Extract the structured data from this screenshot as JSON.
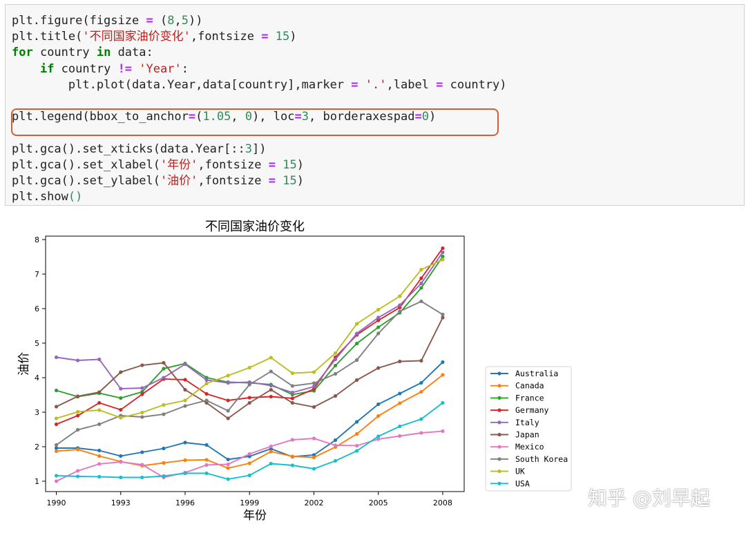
{
  "code_cell": {
    "lines": [
      [
        {
          "t": "plt.figure(figsize "
        },
        {
          "t": "=",
          "c": "op"
        },
        {
          "t": " ("
        },
        {
          "t": "8",
          "c": "num"
        },
        {
          "t": ","
        },
        {
          "t": "5",
          "c": "num"
        },
        {
          "t": "))"
        }
      ],
      [
        {
          "t": "plt.title("
        },
        {
          "t": "'不同国家油价变化'",
          "c": "str"
        },
        {
          "t": ",fontsize "
        },
        {
          "t": "=",
          "c": "op"
        },
        {
          "t": " "
        },
        {
          "t": "15",
          "c": "num"
        },
        {
          "t": ")"
        }
      ],
      [
        {
          "t": "for",
          "c": "kw"
        },
        {
          "t": " country "
        },
        {
          "t": "in",
          "c": "kw"
        },
        {
          "t": " data:"
        }
      ],
      [
        {
          "t": "    "
        },
        {
          "t": "if",
          "c": "kw"
        },
        {
          "t": " country "
        },
        {
          "t": "!=",
          "c": "op"
        },
        {
          "t": " "
        },
        {
          "t": "'Year'",
          "c": "str"
        },
        {
          "t": ":"
        }
      ],
      [
        {
          "t": "        plt.plot(data.Year,data[country],marker "
        },
        {
          "t": "=",
          "c": "op"
        },
        {
          "t": " "
        },
        {
          "t": "'.'",
          "c": "str"
        },
        {
          "t": ",label "
        },
        {
          "t": "=",
          "c": "op"
        },
        {
          "t": " country)"
        }
      ],
      [
        {
          "t": ""
        }
      ],
      [
        {
          "t": "plt.legend(bbox_to_anchor"
        },
        {
          "t": "=",
          "c": "op"
        },
        {
          "t": "("
        },
        {
          "t": "1.05",
          "c": "num"
        },
        {
          "t": ", "
        },
        {
          "t": "0",
          "c": "num"
        },
        {
          "t": "), loc"
        },
        {
          "t": "=",
          "c": "op"
        },
        {
          "t": "3",
          "c": "num"
        },
        {
          "t": ", borderaxespad"
        },
        {
          "t": "=",
          "c": "op"
        },
        {
          "t": "0",
          "c": "num"
        },
        {
          "t": ")"
        }
      ],
      [
        {
          "t": ""
        }
      ],
      [
        {
          "t": "plt.gca().set_xticks(data.Year[::"
        },
        {
          "t": "3",
          "c": "num"
        },
        {
          "t": "])"
        }
      ],
      [
        {
          "t": "plt.gca().set_xlabel("
        },
        {
          "t": "'年份'",
          "c": "str"
        },
        {
          "t": ",fontsize "
        },
        {
          "t": "=",
          "c": "op"
        },
        {
          "t": " "
        },
        {
          "t": "15",
          "c": "num"
        },
        {
          "t": ")"
        }
      ],
      [
        {
          "t": "plt.gca().set_ylabel("
        },
        {
          "t": "'油价'",
          "c": "str"
        },
        {
          "t": ",fontsize "
        },
        {
          "t": "=",
          "c": "op"
        },
        {
          "t": " "
        },
        {
          "t": "15",
          "c": "num"
        },
        {
          "t": ")"
        }
      ],
      [
        {
          "t": "plt.show"
        },
        {
          "t": "()",
          "c": "num"
        }
      ]
    ]
  },
  "watermark": "知乎 @刘早起",
  "chart_data": {
    "type": "line",
    "title": "不同国家油价变化",
    "xlabel": "年份",
    "ylabel": "油价",
    "x": [
      1990,
      1991,
      1992,
      1993,
      1994,
      1995,
      1996,
      1997,
      1998,
      1999,
      2000,
      2001,
      2002,
      2003,
      2004,
      2005,
      2006,
      2007,
      2008
    ],
    "xticks": [
      1990,
      1993,
      1996,
      1999,
      2002,
      2005,
      2008
    ],
    "yticks": [
      1,
      2,
      3,
      4,
      5,
      6,
      7,
      8
    ],
    "xlim": [
      1989.5,
      2009
    ],
    "ylim": [
      0.7,
      8.1
    ],
    "grid": false,
    "legend_position": "outside-right-bottom",
    "series": [
      {
        "name": "Australia",
        "color": "#1f77b4",
        "values": [
          1.96,
          1.96,
          1.89,
          1.73,
          1.84,
          1.95,
          2.12,
          2.05,
          1.63,
          1.72,
          1.94,
          1.71,
          1.76,
          2.19,
          2.72,
          3.23,
          3.54,
          3.85,
          4.45
        ]
      },
      {
        "name": "Canada",
        "color": "#ff7f0e",
        "values": [
          1.87,
          1.92,
          1.73,
          1.57,
          1.45,
          1.53,
          1.61,
          1.62,
          1.38,
          1.52,
          1.86,
          1.72,
          1.69,
          1.99,
          2.37,
          2.89,
          3.26,
          3.59,
          4.08
        ]
      },
      {
        "name": "France",
        "color": "#2ca02c",
        "values": [
          3.63,
          3.45,
          3.55,
          3.41,
          3.59,
          4.26,
          4.41,
          4.0,
          3.87,
          3.85,
          3.8,
          3.51,
          3.62,
          4.35,
          4.99,
          5.46,
          5.88,
          6.6,
          7.51
        ]
      },
      {
        "name": "Germany",
        "color": "#d62728",
        "values": [
          2.65,
          2.9,
          3.27,
          3.07,
          3.52,
          3.96,
          3.94,
          3.53,
          3.34,
          3.42,
          3.45,
          3.4,
          3.67,
          4.59,
          5.24,
          5.66,
          6.03,
          6.88,
          7.75
        ]
      },
      {
        "name": "Italy",
        "color": "#9467bd",
        "values": [
          4.59,
          4.5,
          4.53,
          3.68,
          3.7,
          4.0,
          4.39,
          3.93,
          3.85,
          3.87,
          3.77,
          3.57,
          3.74,
          4.53,
          5.28,
          5.74,
          6.1,
          6.73,
          7.63
        ]
      },
      {
        "name": "Japan",
        "color": "#8c564b",
        "values": [
          3.16,
          3.46,
          3.58,
          4.16,
          4.36,
          4.43,
          3.65,
          3.27,
          2.82,
          3.27,
          3.65,
          3.27,
          3.15,
          3.47,
          3.93,
          4.28,
          4.47,
          4.49,
          5.74
        ]
      },
      {
        "name": "Mexico",
        "color": "#e377c2",
        "values": [
          1.0,
          1.3,
          1.5,
          1.56,
          1.48,
          1.11,
          1.25,
          1.47,
          1.49,
          1.79,
          2.01,
          2.2,
          2.24,
          2.04,
          2.03,
          2.22,
          2.31,
          2.4,
          2.45
        ]
      },
      {
        "name": "South Korea",
        "color": "#7f7f7f",
        "values": [
          2.05,
          2.49,
          2.65,
          2.9,
          2.86,
          2.94,
          3.18,
          3.34,
          3.04,
          3.8,
          4.18,
          3.76,
          3.84,
          4.11,
          4.51,
          5.28,
          5.92,
          6.21,
          5.83
        ]
      },
      {
        "name": "UK",
        "color": "#bcbd22",
        "values": [
          2.82,
          3.01,
          3.06,
          2.84,
          2.99,
          3.21,
          3.34,
          3.83,
          4.06,
          4.29,
          4.58,
          4.13,
          4.16,
          4.71,
          5.56,
          5.97,
          6.36,
          7.13,
          7.42
        ]
      },
      {
        "name": "USA",
        "color": "#17becf",
        "values": [
          1.16,
          1.14,
          1.13,
          1.11,
          1.11,
          1.15,
          1.23,
          1.23,
          1.06,
          1.17,
          1.51,
          1.46,
          1.36,
          1.59,
          1.88,
          2.3,
          2.59,
          2.8,
          3.27
        ]
      }
    ]
  }
}
